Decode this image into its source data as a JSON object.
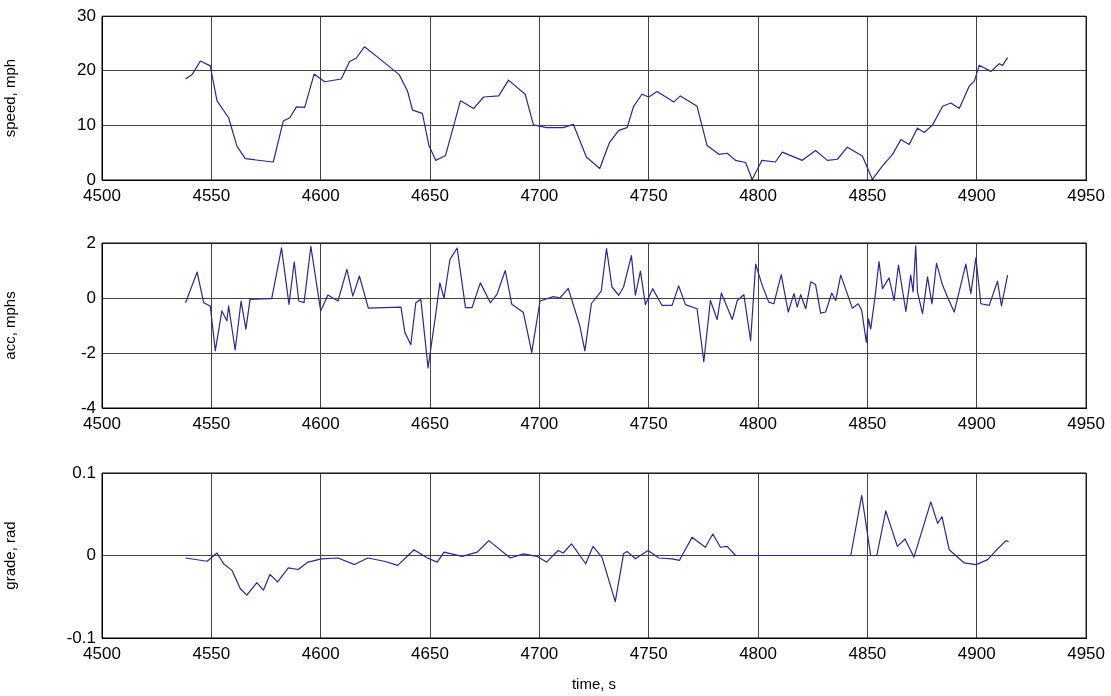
{
  "chart_data": [
    {
      "type": "line",
      "ylabel": "speed, mph",
      "xlim": [
        4500,
        4950
      ],
      "xticks": [
        4500,
        4550,
        4600,
        4650,
        4700,
        4750,
        4800,
        4850,
        4900,
        4950
      ],
      "ylim": [
        0,
        30
      ],
      "yticks": [
        0,
        10,
        20,
        30
      ],
      "grid": true,
      "color": "#28289c",
      "x": [
        4538.2,
        4541.2,
        4545,
        4549.5,
        4552.6,
        4557.9,
        4561.7,
        4565.5,
        4578.3,
        4582.9,
        4585.9,
        4588.9,
        4592.7,
        4597,
        4601.8,
        4609.4,
        4613.2,
        4616.2,
        4620,
        4627.6,
        4635.9,
        4639.7,
        4642,
        4646.5,
        4649.5,
        4652.6,
        4657.1,
        4663.9,
        4670,
        4674.5,
        4681.4,
        4685.9,
        4693.5,
        4697.3,
        4703.3,
        4710.9,
        4715.5,
        4721.5,
        4727.6,
        4732.1,
        4736.3,
        4740.1,
        4743.1,
        4746.9,
        4750,
        4753.8,
        4761.5,
        4764.5,
        4772.1,
        4776.7,
        4782.1,
        4785.9,
        4789.7,
        4794.3,
        4797.3,
        4801.8,
        4807.9,
        4811.1,
        4820.2,
        4826.3,
        4831.7,
        4836.3,
        4840.8,
        4847.7,
        4852.3,
        4856.9,
        4861.5,
        4865.3,
        4869.1,
        4872.9,
        4876,
        4879.8,
        4884.4,
        4888.2,
        4892,
        4896.6,
        4898.9,
        4901.1,
        4906.5,
        4910.3,
        4911.8,
        4914.1
      ],
      "values": [
        18.5,
        19.3,
        21.8,
        20.9,
        14.5,
        11.4,
        6.2,
        3.9,
        3.3,
        10.8,
        11.4,
        13.4,
        13.3,
        19.4,
        18.0,
        18.5,
        21.7,
        22.3,
        24.4,
        22.0,
        19.3,
        16.3,
        12.8,
        12.2,
        6.3,
        3.6,
        4.5,
        14.5,
        13.1,
        15.2,
        15.4,
        18.3,
        15.7,
        10.1,
        9.6,
        9.6,
        10.2,
        4.2,
        2.1,
        6.9,
        9.1,
        9.6,
        13.5,
        15.7,
        15.2,
        16.2,
        14.3,
        15.4,
        13.5,
        6.3,
        4.7,
        4.9,
        3.6,
        3.2,
        0.1,
        3.6,
        3.3,
        5.1,
        3.6,
        5.4,
        3.6,
        3.8,
        6.0,
        4.4,
        0.1,
        2.6,
        4.7,
        7.4,
        6.5,
        9.5,
        8.7,
        10.1,
        13.5,
        14.1,
        13.1,
        17.2,
        18.1,
        21.0,
        19.9,
        21.3,
        21.0,
        22.4
      ]
    },
    {
      "type": "line",
      "ylabel": "acc, mphs",
      "xlim": [
        4500,
        4950
      ],
      "xticks": [
        4500,
        4550,
        4600,
        4650,
        4700,
        4750,
        4800,
        4850,
        4900,
        4950
      ],
      "ylim": [
        -4,
        2
      ],
      "yticks": [
        -4,
        -2,
        0,
        2
      ],
      "grid": true,
      "color": "#28289c",
      "x": [
        4538.2,
        4543.5,
        4546.5,
        4549.5,
        4551.8,
        4554.8,
        4557.1,
        4557.9,
        4560.9,
        4563.6,
        4565.8,
        4567.7,
        4577.6,
        4582.1,
        4585.5,
        4587.9,
        4590,
        4592.4,
        4595.5,
        4600,
        4603.3,
        4607.9,
        4612,
        4614.7,
        4617.7,
        4621.8,
        4636.7,
        4638.5,
        4641.2,
        4643.5,
        4645.8,
        4649.1,
        4652.6,
        4654.5,
        4656.4,
        4659.1,
        4662.4,
        4666.2,
        4669.2,
        4673,
        4677.6,
        4680.6,
        4684.4,
        4687.4,
        4692.7,
        4696.5,
        4700.3,
        4706.4,
        4709.4,
        4713.2,
        4718.5,
        4720.8,
        4723.8,
        4728.3,
        4730.7,
        4733.2,
        4736.3,
        4738.5,
        4742.1,
        4743.9,
        4746.2,
        4748.5,
        4751.8,
        4756.1,
        4760.7,
        4763.7,
        4766.8,
        4772.1,
        4775.2,
        4778.2,
        4781.3,
        4783.2,
        4788.2,
        4790.5,
        4793.5,
        4796.6,
        4798.9,
        4801.9,
        4804.9,
        4807.2,
        4810.6,
        4813.8,
        4816.4,
        4817.9,
        4819.5,
        4821.8,
        4824.1,
        4826.3,
        4828.6,
        4830.9,
        4833.7,
        4835.5,
        4837.8,
        4843.1,
        4845.8,
        4847.4,
        4849.5,
        4850.5,
        4851.5,
        4853.5,
        4855.3,
        4856.9,
        4859.9,
        4862.2,
        4864.2,
        4867.6,
        4869.8,
        4870.9,
        4872.1,
        4872.9,
        4875.2,
        4877.5,
        4879.5,
        4881.6,
        4884.4,
        4886.6,
        4889.7,
        4895,
        4897.3,
        4899.6,
        4901.9,
        4905.7,
        4909.5,
        4911.3,
        4914.1
      ],
      "values": [
        -0.17,
        0.94,
        -0.17,
        -0.29,
        -1.92,
        -0.47,
        -0.83,
        -0.29,
        -1.89,
        -0.11,
        -1.13,
        -0.05,
        -0.02,
        1.82,
        -0.23,
        1.31,
        -0.11,
        -0.17,
        1.88,
        -0.47,
        0.11,
        -0.11,
        1.04,
        0.07,
        0.8,
        -0.37,
        -0.33,
        -1.25,
        -1.7,
        -0.17,
        -0.05,
        -2.54,
        -0.59,
        0.55,
        -0.01,
        1.4,
        1.82,
        -0.35,
        -0.35,
        0.55,
        -0.17,
        0.13,
        1.0,
        -0.23,
        -0.53,
        -1.98,
        -0.11,
        0.05,
        0.0,
        0.35,
        -1.01,
        -1.92,
        -0.2,
        0.25,
        1.8,
        0.4,
        0.1,
        0.4,
        1.54,
        0.1,
        0.98,
        -0.24,
        0.34,
        -0.27,
        -0.27,
        0.44,
        -0.24,
        -0.39,
        -2.32,
        -0.09,
        -0.78,
        0.18,
        -0.78,
        -0.09,
        0.12,
        -1.55,
        1.23,
        0.46,
        -0.15,
        -0.21,
        0.85,
        -0.51,
        0.16,
        -0.33,
        0.12,
        -0.39,
        0.59,
        0.49,
        -0.55,
        -0.51,
        0.18,
        -0.09,
        0.83,
        -0.37,
        -0.21,
        -0.45,
        -1.61,
        -0.76,
        -1.12,
        0.04,
        1.32,
        0.34,
        0.73,
        -0.09,
        1.2,
        -0.49,
        0.83,
        0.22,
        1.9,
        0.22,
        -0.57,
        0.77,
        -0.21,
        1.26,
        0.46,
        0.04,
        -0.51,
        1.23,
        0.16,
        1.46,
        -0.21,
        -0.27,
        0.61,
        -0.29,
        0.83
      ]
    },
    {
      "type": "line",
      "ylabel": "grade, rad",
      "xlabel": "time, s",
      "xlim": [
        4500,
        4950
      ],
      "xticks": [
        4500,
        4550,
        4600,
        4650,
        4700,
        4750,
        4800,
        4850,
        4900,
        4950
      ],
      "ylim": [
        -0.1,
        0.1
      ],
      "yticks": [
        -0.1,
        0,
        0.1
      ],
      "grid": true,
      "color": "#28289c",
      "x": [
        4538.2,
        4548.1,
        4552.6,
        4555.6,
        4559.4,
        4563.2,
        4566.2,
        4570.8,
        4573.8,
        4576.8,
        4580.3,
        4585.2,
        4589.7,
        4594.2,
        4600.3,
        4607.9,
        4615.5,
        4621.5,
        4629.1,
        4635.2,
        4642.7,
        4648.8,
        4653.3,
        4656.4,
        4664.7,
        4671.5,
        4676.9,
        4686.7,
        4692.7,
        4698.8,
        4703.3,
        4708.6,
        4710.9,
        4714.7,
        4721.2,
        4724.5,
        4728.6,
        4734.7,
        4738.5,
        4740.1,
        4743.9,
        4749.7,
        4754.6,
        4760.7,
        4764,
        4769.8,
        4775.9,
        4779.3,
        4782.8,
        4785.9,
        4789.7,
        4842.4,
        4847.4,
        4851.5,
        4854.3,
        4858.4,
        4863.7,
        4867.2,
        4871.3,
        4879,
        4882.1,
        4884.1,
        4887.4,
        4894.3,
        4899.7,
        4905,
        4908.8,
        4913.4,
        4914.6
      ],
      "values": [
        -0.003,
        -0.007,
        0.003,
        -0.01,
        -0.018,
        -0.04,
        -0.048,
        -0.033,
        -0.042,
        -0.023,
        -0.032,
        -0.015,
        -0.017,
        -0.008,
        -0.004,
        -0.003,
        -0.011,
        -0.003,
        -0.007,
        -0.012,
        0.007,
        -0.003,
        -0.008,
        0.004,
        -0.001,
        0.004,
        0.018,
        -0.003,
        0.002,
        -0.001,
        -0.008,
        0.006,
        0.003,
        0.014,
        -0.01,
        0.011,
        -0.002,
        -0.056,
        0.002,
        0.005,
        -0.004,
        0.006,
        -0.003,
        -0.004,
        -0.006,
        0.022,
        0.01,
        0.026,
        0.01,
        0.011,
        0,
        0,
        0.073,
        0,
        0,
        0.054,
        0.011,
        0.02,
        -0.002,
        0.065,
        0.039,
        0.047,
        0.007,
        -0.009,
        -0.011,
        -0.005,
        0.006,
        0.018,
        0.017
      ]
    }
  ]
}
